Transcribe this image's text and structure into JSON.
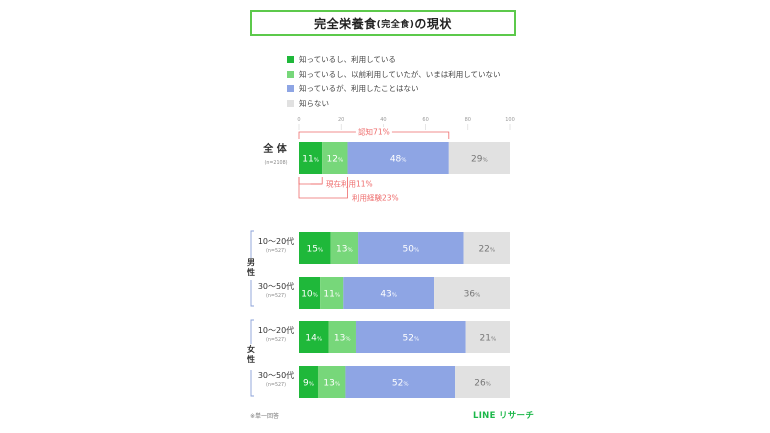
{
  "title": {
    "main": "完全栄養食",
    "paren": "(完全食)",
    "suffix": "の現状"
  },
  "colors": {
    "title_border": "#5cc94b",
    "series": [
      "#1fb83a",
      "#77d77a",
      "#8ea5e4",
      "#e1e1e1"
    ],
    "annotation": "#ee6b6b",
    "bracket_blue": "#8aa0d8",
    "brand": "#1cb84a"
  },
  "legend": [
    {
      "label": "知っているし、利用している"
    },
    {
      "label": "知っているし、以前利用していたが、いまは利用していない"
    },
    {
      "label": "知っているが、利用したことはない"
    },
    {
      "label": "知らない"
    }
  ],
  "annotations": {
    "awareness": "認知71%",
    "current": "現在利用11%",
    "experience": "利用経験23%"
  },
  "chart_data": {
    "type": "bar",
    "orientation": "horizontal",
    "stacked": true,
    "xlim": [
      0,
      100
    ],
    "xticks": [
      "0",
      "20",
      "40",
      "60",
      "80",
      "100"
    ],
    "series": [
      {
        "name": "知っているし、利用している"
      },
      {
        "name": "知っているし、以前利用していたが、いまは利用していない"
      },
      {
        "name": "知っているが、利用したことはない"
      },
      {
        "name": "知らない"
      }
    ],
    "rows": [
      {
        "group": "",
        "label": "全 体",
        "n": "(n=2108)",
        "values": [
          11,
          12,
          48,
          29
        ]
      },
      {
        "group": "男性",
        "label": "10～20代",
        "n": "(n=527)",
        "values": [
          15,
          13,
          50,
          22
        ]
      },
      {
        "group": "男性",
        "label": "30～50代",
        "n": "(n=527)",
        "values": [
          10,
          11,
          43,
          36
        ]
      },
      {
        "group": "女性",
        "label": "10～20代",
        "n": "(n=527)",
        "values": [
          14,
          13,
          52,
          21
        ]
      },
      {
        "group": "女性",
        "label": "30～50代",
        "n": "(n=527)",
        "values": [
          9,
          13,
          52,
          26
        ]
      }
    ],
    "group_labels": {
      "male": "男性",
      "female": "女性"
    },
    "percent_unit": "%"
  },
  "footnote": "※単一回答",
  "brand": "LINE リサーチ"
}
